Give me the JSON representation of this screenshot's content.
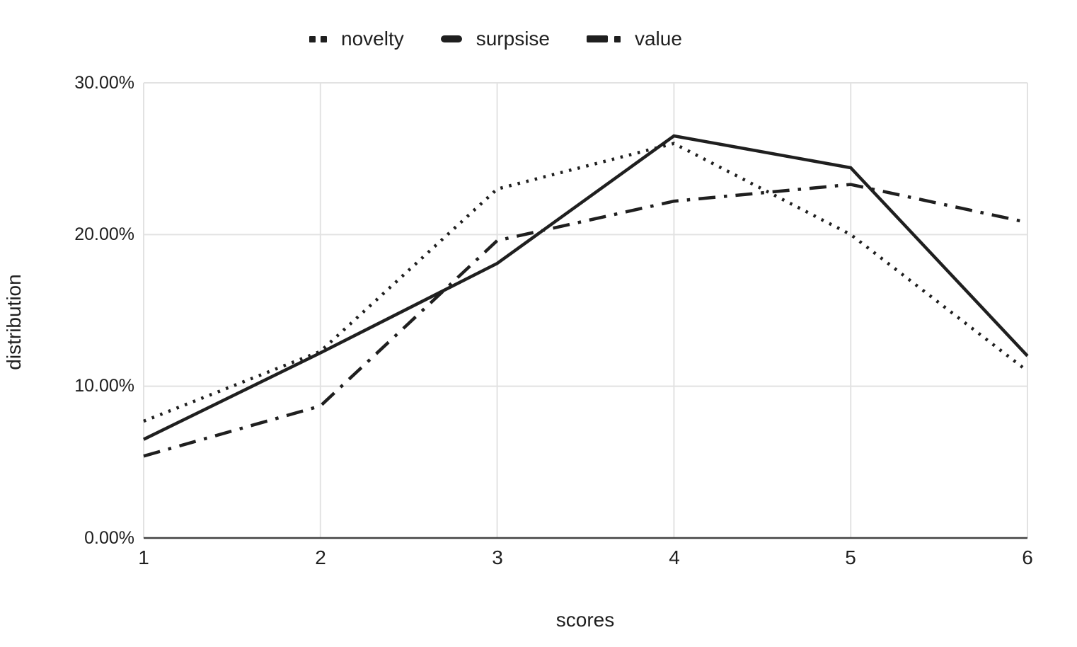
{
  "chart_data": {
    "type": "line",
    "title": "",
    "xlabel": "scores",
    "ylabel": "distribution",
    "x": [
      1,
      2,
      3,
      4,
      5,
      6
    ],
    "xticks": [
      "1",
      "2",
      "3",
      "4",
      "5",
      "6"
    ],
    "yticks_top_to_bottom": [
      "30.00%",
      "20.00%",
      "10.00%",
      "0.00%"
    ],
    "ylim": [
      0,
      30
    ],
    "grid": true,
    "legend_position": "top-center",
    "series": [
      {
        "name": "novelty",
        "style": "dotted",
        "values": [
          7.7,
          12.3,
          23.0,
          26.0,
          20.0,
          11.0
        ]
      },
      {
        "name": "surpsise",
        "style": "solid",
        "values": [
          6.5,
          12.2,
          18.1,
          26.5,
          24.4,
          12.0
        ]
      },
      {
        "name": "value",
        "style": "dashdot",
        "values": [
          5.4,
          8.7,
          19.6,
          22.2,
          23.3,
          20.8
        ]
      }
    ],
    "colors": {
      "line": "#1f1f1f",
      "grid": "#e2e2e2",
      "axis": "#424242",
      "text": "#1f1f1f",
      "background": "#ffffff"
    }
  }
}
